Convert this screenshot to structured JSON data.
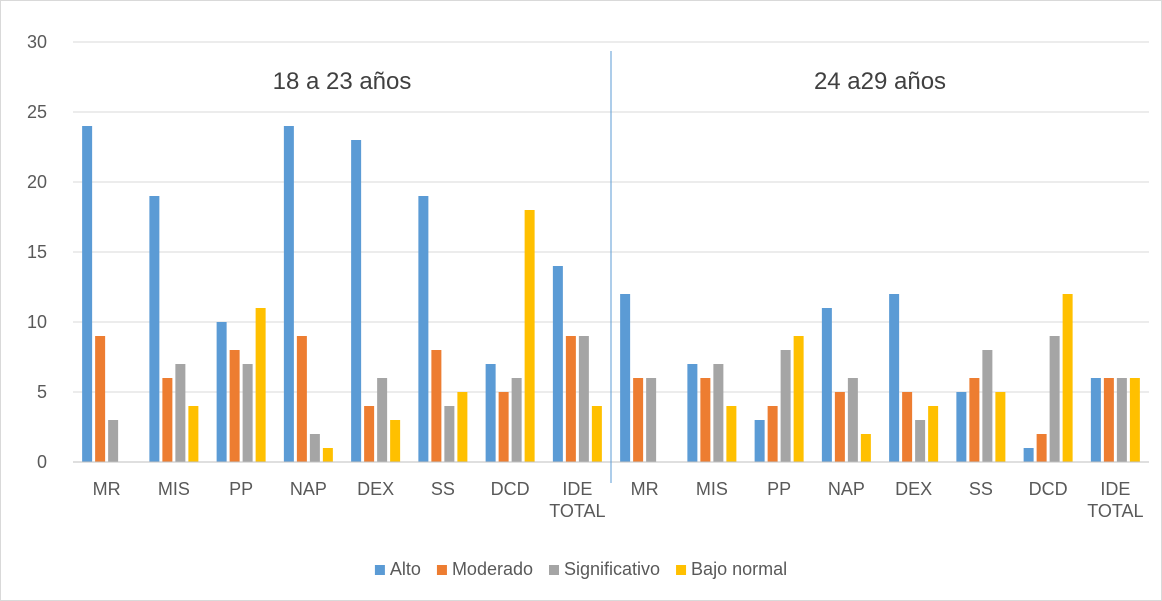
{
  "chart_data": {
    "type": "bar",
    "title": "",
    "xlabel": "",
    "ylabel": "",
    "ylim": [
      0,
      30
    ],
    "yticks": [
      0,
      5,
      10,
      15,
      20,
      25,
      30
    ],
    "grid": true,
    "legend_position": "bottom",
    "groups": [
      {
        "label": "18 a 23 años",
        "categories": [
          [
            "MR"
          ],
          [
            "MIS"
          ],
          [
            "PP"
          ],
          [
            "NAP"
          ],
          [
            "DEX"
          ],
          [
            "SS"
          ],
          [
            "DCD"
          ],
          [
            "IDE",
            "TOTAL"
          ]
        ],
        "series": [
          {
            "name": "Alto",
            "values": [
              24,
              19,
              10,
              24,
              23,
              19,
              7,
              14
            ]
          },
          {
            "name": "Moderado",
            "values": [
              9,
              6,
              8,
              9,
              4,
              8,
              5,
              9
            ]
          },
          {
            "name": "Significativo",
            "values": [
              3,
              7,
              7,
              2,
              6,
              4,
              6,
              9
            ]
          },
          {
            "name": "Bajo normal",
            "values": [
              0,
              4,
              11,
              1,
              3,
              5,
              18,
              4
            ]
          }
        ]
      },
      {
        "label": "24 a29 años",
        "categories": [
          [
            "MR"
          ],
          [
            "MIS"
          ],
          [
            "PP"
          ],
          [
            "NAP"
          ],
          [
            "DEX"
          ],
          [
            "SS"
          ],
          [
            "DCD"
          ],
          [
            "IDE",
            "TOTAL"
          ]
        ],
        "series": [
          {
            "name": "Alto",
            "values": [
              12,
              7,
              3,
              11,
              12,
              5,
              1,
              6
            ]
          },
          {
            "name": "Moderado",
            "values": [
              6,
              6,
              4,
              5,
              5,
              6,
              2,
              6
            ]
          },
          {
            "name": "Significativo",
            "values": [
              6,
              7,
              8,
              6,
              3,
              8,
              9,
              6
            ]
          },
          {
            "name": "Bajo normal",
            "values": [
              0,
              4,
              9,
              2,
              4,
              5,
              12,
              6
            ]
          }
        ]
      }
    ],
    "legend": [
      "Alto",
      "Moderado",
      "Significativo",
      "Bajo normal"
    ],
    "colors": {
      "Alto": "#5b9bd5",
      "Moderado": "#ed7d31",
      "Significativo": "#a5a5a5",
      "Bajo normal": "#ffc000"
    }
  }
}
